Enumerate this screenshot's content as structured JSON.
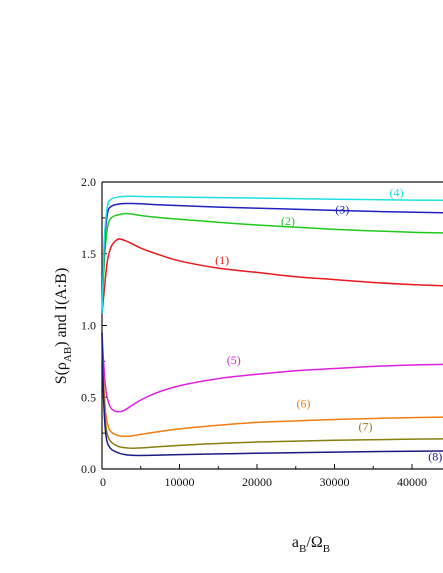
{
  "chart_data": {
    "type": "line",
    "title": "",
    "xlabel": "a_B/Ω_B",
    "ylabel": "S(ρ_AB) and I(A:B)",
    "xlim": [
      0,
      45000
    ],
    "ylim": [
      0,
      2.0
    ],
    "x_ticks": [
      0,
      10000,
      20000,
      30000,
      40000
    ],
    "x_tick_labels": [
      "0",
      "10000",
      "20000",
      "30000",
      "40000"
    ],
    "y_ticks": [
      0.0,
      0.5,
      1.0,
      1.5,
      2.0
    ],
    "y_tick_labels": [
      "0.0",
      "0.5",
      "1.0",
      "1.5",
      "2.0"
    ],
    "grid": false,
    "legend": "none",
    "series": [
      {
        "name": "(1)",
        "color": "#e8191e",
        "x": [
          0,
          300,
          700,
          1200,
          2000,
          2500,
          3500,
          5000,
          7000,
          10000,
          15000,
          20000,
          25000,
          30000,
          35000,
          40000,
          45000
        ],
        "y": [
          1.08,
          1.25,
          1.45,
          1.55,
          1.6,
          1.6,
          1.58,
          1.54,
          1.5,
          1.45,
          1.4,
          1.37,
          1.34,
          1.32,
          1.3,
          1.285,
          1.275
        ]
      },
      {
        "name": "(2)",
        "color": "#1dc91d",
        "x": [
          0,
          300,
          700,
          1200,
          2000,
          3000,
          4000,
          6000,
          10000,
          20000,
          30000,
          40000,
          45000
        ],
        "y": [
          1.08,
          1.45,
          1.68,
          1.75,
          1.77,
          1.78,
          1.775,
          1.76,
          1.74,
          1.7,
          1.67,
          1.65,
          1.645
        ]
      },
      {
        "name": "(3)",
        "color": "#2020c0",
        "x": [
          0,
          300,
          700,
          1200,
          2000,
          3000,
          4000,
          5000,
          8000,
          15000,
          25000,
          35000,
          45000
        ],
        "y": [
          1.08,
          1.55,
          1.78,
          1.83,
          1.845,
          1.85,
          1.85,
          1.848,
          1.84,
          1.825,
          1.81,
          1.795,
          1.785
        ]
      },
      {
        "name": "(4)",
        "color": "#1ee0e0",
        "x": [
          0,
          300,
          700,
          1200,
          2000,
          3000,
          4500,
          6000,
          10000,
          20000,
          30000,
          40000,
          45000
        ],
        "y": [
          1.08,
          1.6,
          1.83,
          1.88,
          1.895,
          1.9,
          1.9,
          1.898,
          1.895,
          1.888,
          1.88,
          1.874,
          1.872
        ]
      },
      {
        "name": "(5)",
        "color": "#e01ee0",
        "x": [
          0,
          200,
          500,
          1000,
          1600,
          2200,
          2700,
          3500,
          5000,
          7000,
          10000,
          15000,
          20000,
          25000,
          30000,
          35000,
          40000,
          45000
        ],
        "y": [
          0.95,
          0.75,
          0.55,
          0.44,
          0.405,
          0.4,
          0.405,
          0.43,
          0.48,
          0.53,
          0.58,
          0.63,
          0.66,
          0.685,
          0.7,
          0.715,
          0.725,
          0.73
        ]
      },
      {
        "name": "(6)",
        "color": "#f07c10",
        "x": [
          0,
          200,
          500,
          1000,
          2000,
          3000,
          4000,
          6000,
          10000,
          15000,
          20000,
          25000,
          30000,
          35000,
          40000,
          45000
        ],
        "y": [
          0.95,
          0.62,
          0.38,
          0.27,
          0.235,
          0.228,
          0.232,
          0.25,
          0.28,
          0.305,
          0.325,
          0.335,
          0.345,
          0.352,
          0.358,
          0.362
        ]
      },
      {
        "name": "(7)",
        "color": "#8a7d10",
        "x": [
          0,
          200,
          500,
          1000,
          2000,
          3000,
          4000,
          6000,
          10000,
          15000,
          20000,
          30000,
          40000,
          45000
        ],
        "y": [
          0.95,
          0.55,
          0.3,
          0.2,
          0.16,
          0.148,
          0.145,
          0.15,
          0.165,
          0.178,
          0.188,
          0.2,
          0.208,
          0.21
        ]
      },
      {
        "name": "(8)",
        "color": "#1a1a80",
        "x": [
          0,
          200,
          500,
          1000,
          2000,
          3000,
          4000,
          6000,
          10000,
          15000,
          20000,
          30000,
          40000,
          45000
        ],
        "y": [
          0.95,
          0.5,
          0.24,
          0.15,
          0.115,
          0.1,
          0.095,
          0.095,
          0.1,
          0.105,
          0.11,
          0.118,
          0.124,
          0.126
        ]
      }
    ],
    "annotations": [
      {
        "text": "(1)",
        "series": 0,
        "x": 15500,
        "y": 1.43
      },
      {
        "text": "(2)",
        "series": 1,
        "x": 24000,
        "y": 1.7
      },
      {
        "text": "(3)",
        "series": 2,
        "x": 31000,
        "y": 1.78
      },
      {
        "text": "(4)",
        "series": 3,
        "x": 38000,
        "y": 1.9
      },
      {
        "text": "(5)",
        "series": 4,
        "x": 17000,
        "y": 0.73
      },
      {
        "text": "(6)",
        "series": 5,
        "x": 26000,
        "y": 0.43
      },
      {
        "text": "(7)",
        "series": 6,
        "x": 34000,
        "y": 0.27
      },
      {
        "text": "(8)",
        "series": 7,
        "x": 43000,
        "y": 0.06
      }
    ]
  }
}
